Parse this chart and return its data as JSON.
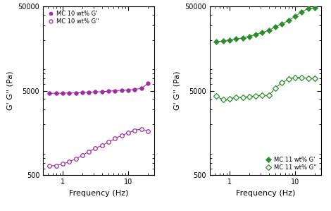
{
  "left": {
    "freq_G_prime": [
      0.63,
      0.8,
      1.0,
      1.25,
      1.6,
      2.0,
      2.5,
      3.15,
      4.0,
      5.0,
      6.3,
      8.0,
      10.0,
      12.5,
      16.0,
      20.0
    ],
    "G_prime": [
      4650,
      4660,
      4680,
      4700,
      4720,
      4750,
      4800,
      4840,
      4880,
      4940,
      5000,
      5050,
      5100,
      5180,
      5350,
      6100
    ],
    "freq_G_dbl_prime": [
      0.63,
      0.8,
      1.0,
      1.25,
      1.6,
      2.0,
      2.5,
      3.15,
      4.0,
      5.0,
      6.3,
      8.0,
      10.0,
      12.5,
      16.0,
      20.0
    ],
    "G_dbl_prime": [
      640,
      650,
      680,
      720,
      780,
      860,
      950,
      1040,
      1130,
      1230,
      1360,
      1480,
      1580,
      1700,
      1760,
      1660
    ],
    "color": "#9b30a0",
    "marker_prime": "o",
    "marker_dbl": "o",
    "label_prime": "MC 10 wt% G'",
    "label_dbl": "MC 10 wt% G''",
    "ylabel": "G' G'' (Pa)",
    "xlabel": "Frequency (Hz)",
    "ylim": [
      500,
      50000
    ],
    "xlim": [
      0.5,
      25
    ],
    "legend_loc": "upper left"
  },
  "right": {
    "freq_G_prime": [
      0.63,
      0.8,
      1.0,
      1.25,
      1.6,
      2.0,
      2.5,
      3.15,
      4.0,
      5.0,
      6.3,
      8.0,
      10.0,
      12.5,
      16.0,
      20.0
    ],
    "G_prime": [
      19000,
      19500,
      20000,
      20500,
      21200,
      22000,
      23200,
      24500,
      26000,
      28500,
      31000,
      34000,
      38000,
      43000,
      47000,
      48000
    ],
    "freq_G_dbl_prime": [
      0.63,
      0.8,
      1.0,
      1.25,
      1.6,
      2.0,
      2.5,
      3.15,
      4.0,
      5.0,
      6.3,
      8.0,
      10.0,
      12.5,
      16.0,
      20.0
    ],
    "G_dbl_prime": [
      4300,
      3900,
      4000,
      4150,
      4200,
      4250,
      4350,
      4400,
      4400,
      5400,
      6200,
      6900,
      7200,
      7200,
      7000,
      6950
    ],
    "color": "#2e8b2e",
    "marker_prime": "D",
    "marker_dbl": "D",
    "label_prime": "MC 11 wt% G'",
    "label_dbl": "MC 11 wt% G''",
    "ylabel": "G' G'' (Pa)",
    "xlabel": "Frequency (Hz)",
    "ylim": [
      500,
      50000
    ],
    "xlim": [
      0.5,
      25
    ],
    "legend_loc": "lower right"
  }
}
